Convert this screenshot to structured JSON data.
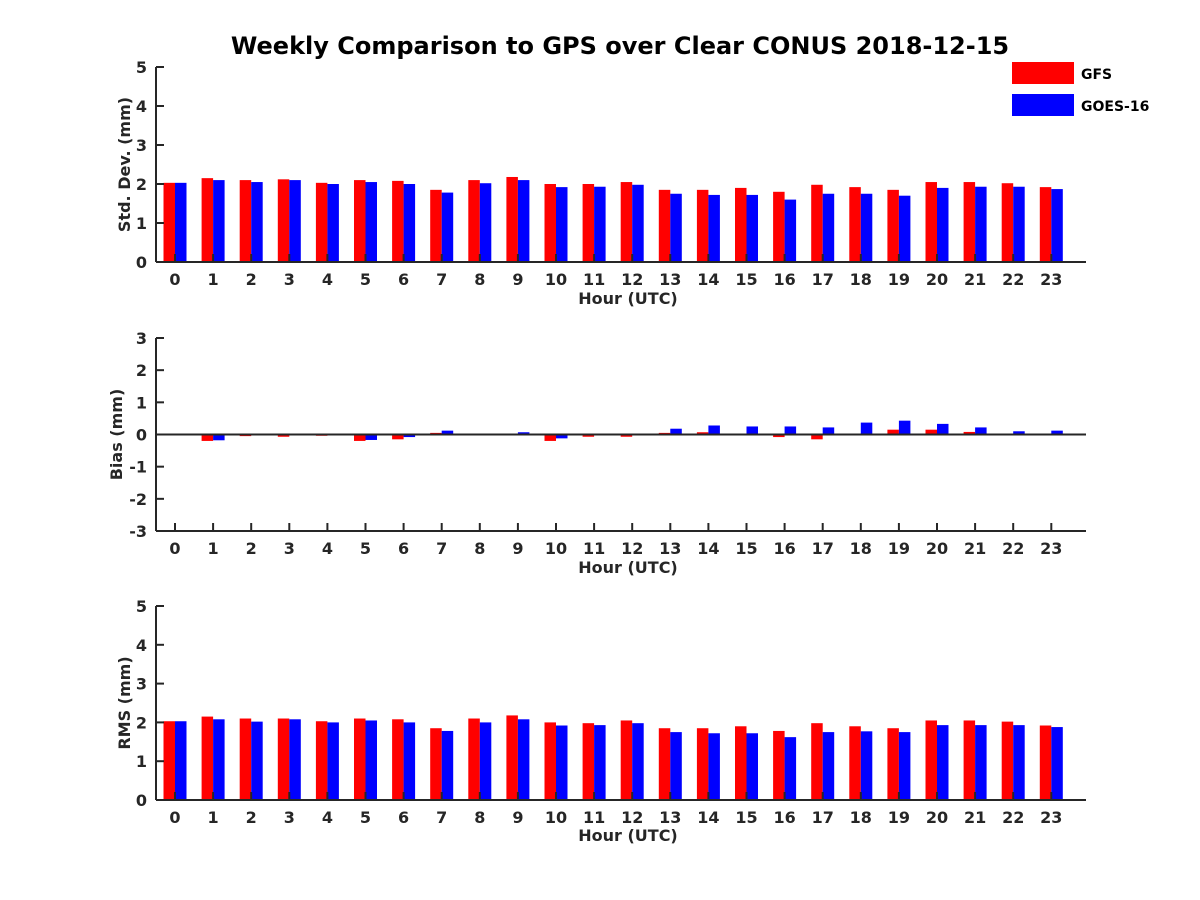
{
  "title": "Weekly Comparison to GPS over Clear CONUS 2018-12-15",
  "legend": [
    {
      "name": "GFS",
      "color": "#ff0000"
    },
    {
      "name": "GOES-16",
      "color": "#0000ff"
    }
  ],
  "chart_data": [
    {
      "type": "bar",
      "xlabel": "Hour (UTC)",
      "ylabel": "Std. Dev. (mm)",
      "ylim": [
        0,
        5
      ],
      "yticks": [
        "0",
        "1",
        "2",
        "3",
        "4",
        "5"
      ],
      "categories": [
        "0",
        "1",
        "2",
        "3",
        "4",
        "5",
        "6",
        "7",
        "8",
        "9",
        "10",
        "11",
        "12",
        "13",
        "14",
        "15",
        "16",
        "17",
        "18",
        "19",
        "20",
        "21",
        "22",
        "23"
      ],
      "series": [
        {
          "name": "GFS",
          "values": [
            2.03,
            2.15,
            2.1,
            2.12,
            2.03,
            2.1,
            2.08,
            1.85,
            2.1,
            2.18,
            2.0,
            2.0,
            2.05,
            1.85,
            1.85,
            1.9,
            1.8,
            1.98,
            1.92,
            1.85,
            2.05,
            2.05,
            2.02,
            1.92
          ]
        },
        {
          "name": "GOES-16",
          "values": [
            2.03,
            2.1,
            2.05,
            2.1,
            2.0,
            2.05,
            2.0,
            1.78,
            2.02,
            2.1,
            1.92,
            1.93,
            1.98,
            1.75,
            1.72,
            1.72,
            1.6,
            1.75,
            1.75,
            1.7,
            1.9,
            1.93,
            1.93,
            1.87
          ]
        }
      ]
    },
    {
      "type": "bar",
      "xlabel": "Hour (UTC)",
      "ylabel": "Bias (mm)",
      "ylim": [
        -3,
        3
      ],
      "yticks": [
        "-3",
        "-2",
        "-1",
        "0",
        "1",
        "2",
        "3"
      ],
      "categories": [
        "0",
        "1",
        "2",
        "3",
        "4",
        "5",
        "6",
        "7",
        "8",
        "9",
        "10",
        "11",
        "12",
        "13",
        "14",
        "15",
        "16",
        "17",
        "18",
        "19",
        "20",
        "21",
        "22",
        "23"
      ],
      "series": [
        {
          "name": "GFS",
          "values": [
            -0.02,
            -0.2,
            -0.05,
            -0.07,
            -0.04,
            -0.2,
            -0.15,
            0.05,
            -0.01,
            0.0,
            -0.2,
            -0.07,
            -0.07,
            0.05,
            0.07,
            -0.03,
            -0.08,
            -0.15,
            0.03,
            0.15,
            0.15,
            0.08,
            0.03,
            0.02
          ]
        },
        {
          "name": "GOES-16",
          "values": [
            0.02,
            -0.18,
            -0.02,
            -0.02,
            -0.02,
            -0.17,
            -0.08,
            0.12,
            0.02,
            0.07,
            -0.12,
            -0.03,
            -0.02,
            0.18,
            0.28,
            0.25,
            0.25,
            0.22,
            0.37,
            0.43,
            0.33,
            0.22,
            0.1,
            0.12
          ]
        }
      ]
    },
    {
      "type": "bar",
      "xlabel": "Hour (UTC)",
      "ylabel": "RMS (mm)",
      "ylim": [
        0,
        5
      ],
      "yticks": [
        "0",
        "1",
        "2",
        "3",
        "4",
        "5"
      ],
      "categories": [
        "0",
        "1",
        "2",
        "3",
        "4",
        "5",
        "6",
        "7",
        "8",
        "9",
        "10",
        "11",
        "12",
        "13",
        "14",
        "15",
        "16",
        "17",
        "18",
        "19",
        "20",
        "21",
        "22",
        "23"
      ],
      "series": [
        {
          "name": "GFS",
          "values": [
            2.03,
            2.15,
            2.1,
            2.1,
            2.03,
            2.1,
            2.08,
            1.85,
            2.1,
            2.18,
            2.0,
            1.98,
            2.05,
            1.85,
            1.85,
            1.9,
            1.78,
            1.98,
            1.9,
            1.85,
            2.05,
            2.05,
            2.02,
            1.92
          ]
        },
        {
          "name": "GOES-16",
          "values": [
            2.03,
            2.08,
            2.02,
            2.08,
            2.0,
            2.05,
            2.0,
            1.78,
            2.0,
            2.08,
            1.92,
            1.93,
            1.98,
            1.75,
            1.72,
            1.72,
            1.62,
            1.75,
            1.77,
            1.75,
            1.93,
            1.93,
            1.93,
            1.88
          ]
        }
      ]
    }
  ]
}
